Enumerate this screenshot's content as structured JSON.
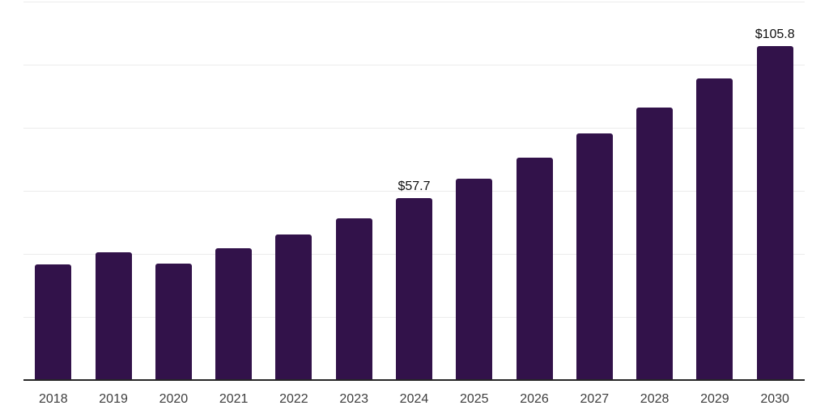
{
  "style": {
    "background": "#ffffff",
    "bar_color": "#32124a",
    "grid_color": "#ececec",
    "axis_color": "#262626",
    "tick_label_color": "#3d3d3d",
    "value_label_color": "#0f0f0f"
  },
  "chart_data": {
    "type": "bar",
    "title": "",
    "xlabel": "",
    "ylabel": "",
    "categories": [
      "2018",
      "2019",
      "2020",
      "2021",
      "2022",
      "2023",
      "2024",
      "2025",
      "2026",
      "2027",
      "2028",
      "2029",
      "2030"
    ],
    "values": [
      36.6,
      40.6,
      36.9,
      41.7,
      46.2,
      51.3,
      57.7,
      63.8,
      70.6,
      78.1,
      86.4,
      95.6,
      105.8
    ],
    "value_labels": [
      "",
      "",
      "",
      "",
      "",
      "",
      "$57.7",
      "",
      "",
      "",
      "",
      "",
      "$105.8"
    ],
    "ylim": [
      0,
      120
    ],
    "grid_step": 20,
    "grid": true,
    "legend": false,
    "y_tick_labels_visible": false
  }
}
